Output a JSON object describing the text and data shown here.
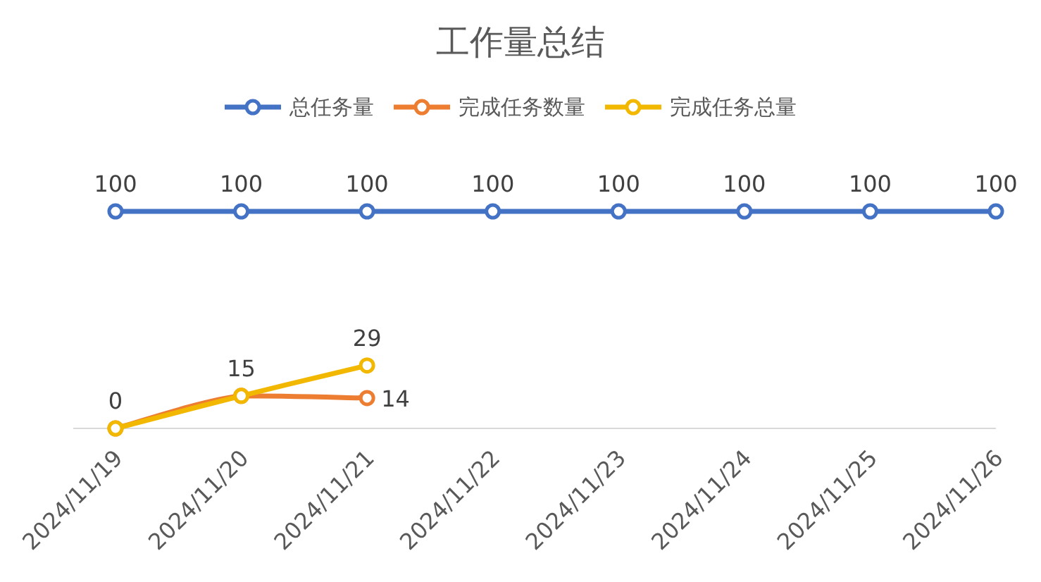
{
  "chart_data": {
    "type": "line",
    "title": "工作量总结",
    "categories": [
      "2024/11/19",
      "2024/11/20",
      "2024/11/21",
      "2024/11/22",
      "2024/11/23",
      "2024/11/24",
      "2024/11/25",
      "2024/11/26"
    ],
    "series": [
      {
        "name": "总任务量",
        "color": "#4472c4",
        "values": [
          100,
          100,
          100,
          100,
          100,
          100,
          100,
          100
        ],
        "value_labels": [
          "100",
          "100",
          "100",
          "100",
          "100",
          "100",
          "100",
          "100"
        ]
      },
      {
        "name": "完成任务数量",
        "color": "#ed7d31",
        "values": [
          0,
          15,
          14,
          null,
          null,
          null,
          null,
          null
        ],
        "value_labels": [
          null,
          null,
          "14",
          null,
          null,
          null,
          null,
          null
        ]
      },
      {
        "name": "完成任务总量",
        "color": "#f2b800",
        "values": [
          0,
          15,
          29,
          null,
          null,
          null,
          null,
          null
        ],
        "value_labels": [
          "0",
          "15",
          "29",
          null,
          null,
          null,
          null,
          null
        ]
      }
    ],
    "legend": "top",
    "marker": "circle",
    "line_style": "solid"
  }
}
